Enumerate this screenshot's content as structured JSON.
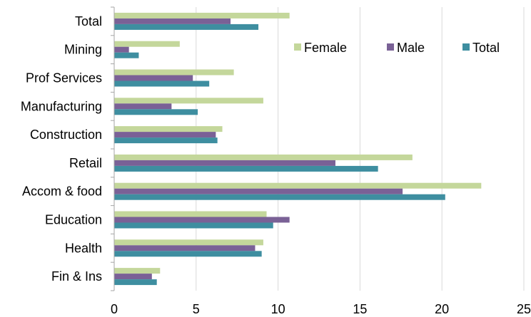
{
  "chart_data": {
    "type": "bar",
    "orientation": "horizontal",
    "categories": [
      "Total",
      "Mining",
      "Prof Services",
      "Manufacturing",
      "Construction",
      "Retail",
      "Accom & food",
      "Education",
      "Health",
      "Fin & Ins"
    ],
    "series": [
      {
        "name": "Female",
        "color": "#c4d79b",
        "values": [
          10.7,
          4.0,
          7.3,
          9.1,
          6.6,
          18.2,
          22.4,
          9.3,
          9.1,
          2.8
        ]
      },
      {
        "name": "Male",
        "color": "#7a6196",
        "values": [
          7.1,
          0.9,
          4.8,
          3.5,
          6.2,
          13.5,
          17.6,
          10.7,
          8.6,
          2.3
        ]
      },
      {
        "name": "Total",
        "color": "#3e8ea0",
        "values": [
          8.8,
          1.5,
          5.8,
          5.1,
          6.3,
          16.1,
          20.2,
          9.7,
          9.0,
          2.6
        ]
      }
    ],
    "xlim": [
      0,
      25
    ],
    "xticks": [
      "0",
      "5",
      "10",
      "15",
      "20",
      "25"
    ],
    "grid": "vertical",
    "legend_position": "top-right",
    "title": "",
    "xlabel": "",
    "ylabel": ""
  }
}
